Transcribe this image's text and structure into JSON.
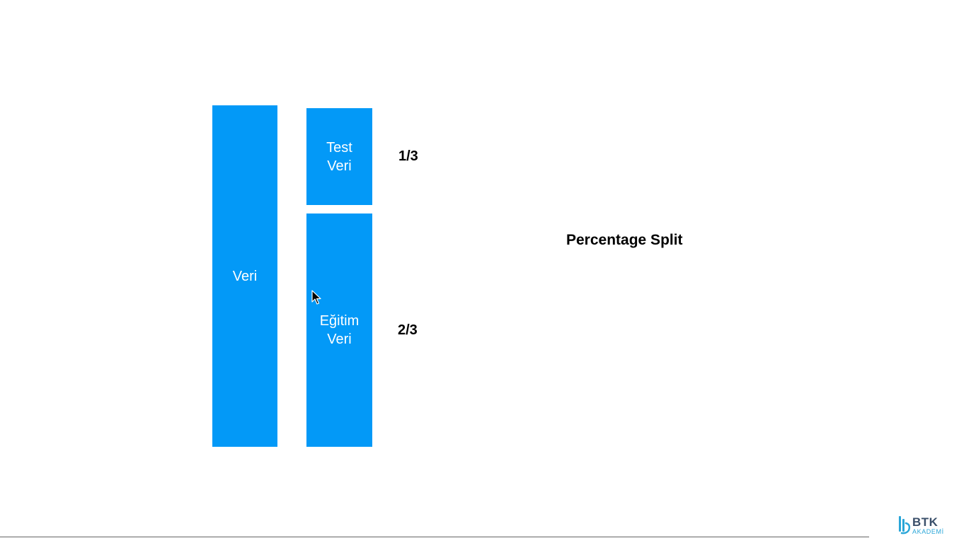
{
  "colors": {
    "box_fill": "#0399f7",
    "text_on_box": "#ffffff",
    "label_text": "#000000",
    "logo_dark": "#3a4f6a",
    "logo_accent": "#2aa6d8"
  },
  "diagram": {
    "full_data_label": "Veri",
    "test_label": "Test\nVeri",
    "train_label": "Eğitim\nVeri",
    "test_fraction": "1/3",
    "train_fraction": "2/3",
    "method_title": "Percentage Split"
  },
  "logo": {
    "brand": "BTK",
    "sub": "AKADEMİ"
  },
  "icons": {
    "cursor": "mouse-pointer-icon",
    "logo_mark": "btk-logo-icon"
  }
}
